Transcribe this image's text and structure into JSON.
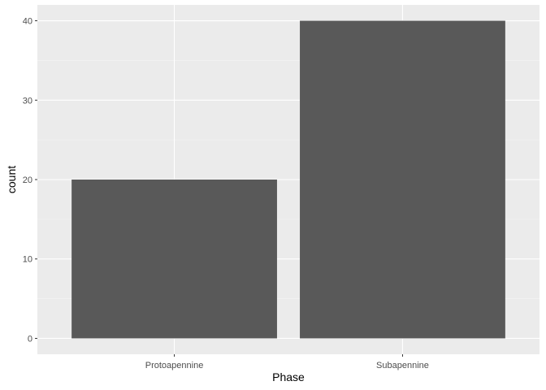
{
  "chart_data": {
    "type": "bar",
    "categories": [
      "Protoapennine",
      "Subapennine"
    ],
    "values": [
      20,
      40
    ],
    "xlabel": "Phase",
    "ylabel": "count",
    "ylim": [
      -2,
      42
    ],
    "yticks": [
      0,
      10,
      20,
      30,
      40
    ],
    "grid": true,
    "legend": "none",
    "colors": {
      "panel_background": "#ebebeb",
      "grid_major": "#ffffff",
      "grid_minor": "#f5f5f5",
      "bar_fill": "#595959",
      "tick_mark": "#333333"
    }
  }
}
